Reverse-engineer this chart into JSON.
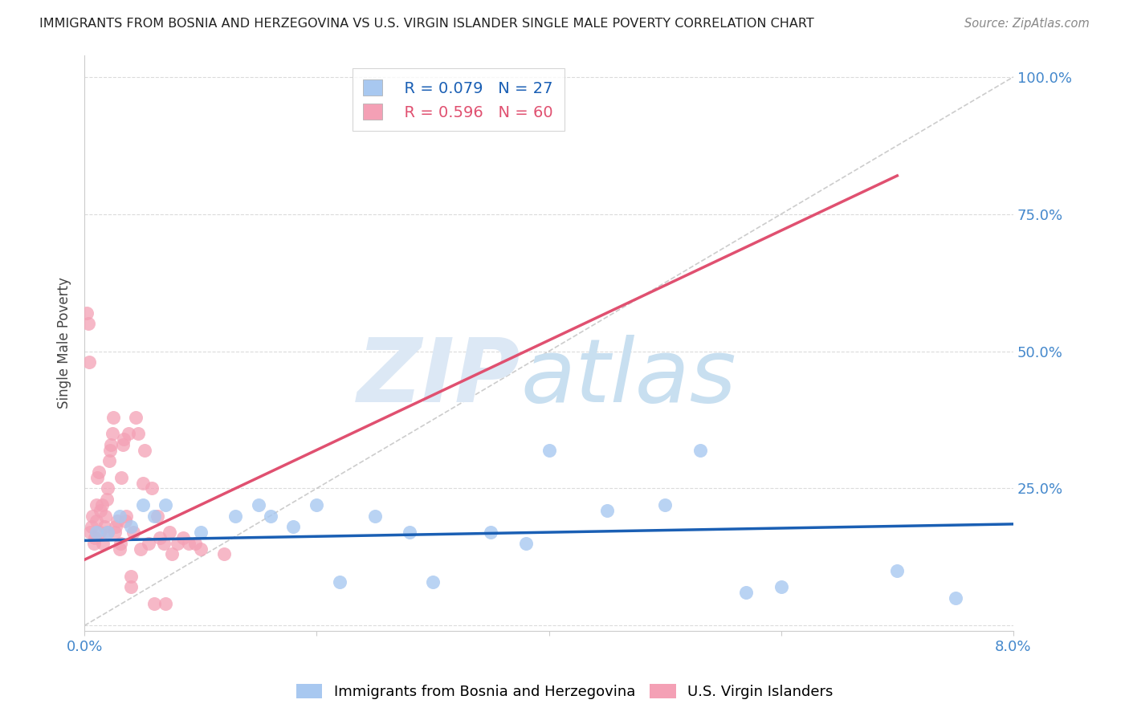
{
  "title": "IMMIGRANTS FROM BOSNIA AND HERZEGOVINA VS U.S. VIRGIN ISLANDER SINGLE MALE POVERTY CORRELATION CHART",
  "source": "Source: ZipAtlas.com",
  "ylabel": "Single Male Poverty",
  "xlim": [
    0.0,
    0.08
  ],
  "ylim": [
    0.0,
    1.0
  ],
  "xticks": [
    0.0,
    0.02,
    0.04,
    0.06,
    0.08
  ],
  "xticklabels": [
    "0.0%",
    "",
    "",
    "",
    "8.0%"
  ],
  "yticks": [
    0.0,
    0.25,
    0.5,
    0.75,
    1.0
  ],
  "yticklabels": [
    "",
    "25.0%",
    "50.0%",
    "75.0%",
    "100.0%"
  ],
  "r_blue": 0.079,
  "n_blue": 27,
  "r_pink": 0.596,
  "n_pink": 60,
  "blue_color": "#a8c8f0",
  "pink_color": "#f4a0b5",
  "blue_line_color": "#1a5fb4",
  "pink_line_color": "#e05070",
  "blue_line": {
    "x0": 0.0,
    "y0": 0.155,
    "x1": 0.08,
    "y1": 0.185
  },
  "pink_line": {
    "x0": 0.0,
    "y0": 0.12,
    "x1": 0.07,
    "y1": 0.82
  },
  "blue_scatter": [
    [
      0.001,
      0.17
    ],
    [
      0.002,
      0.17
    ],
    [
      0.003,
      0.2
    ],
    [
      0.004,
      0.18
    ],
    [
      0.005,
      0.22
    ],
    [
      0.006,
      0.2
    ],
    [
      0.007,
      0.22
    ],
    [
      0.01,
      0.17
    ],
    [
      0.013,
      0.2
    ],
    [
      0.015,
      0.22
    ],
    [
      0.016,
      0.2
    ],
    [
      0.018,
      0.18
    ],
    [
      0.02,
      0.22
    ],
    [
      0.022,
      0.08
    ],
    [
      0.025,
      0.2
    ],
    [
      0.028,
      0.17
    ],
    [
      0.03,
      0.08
    ],
    [
      0.035,
      0.17
    ],
    [
      0.038,
      0.15
    ],
    [
      0.04,
      0.32
    ],
    [
      0.045,
      0.21
    ],
    [
      0.05,
      0.22
    ],
    [
      0.053,
      0.32
    ],
    [
      0.057,
      0.06
    ],
    [
      0.06,
      0.07
    ],
    [
      0.07,
      0.1
    ],
    [
      0.075,
      0.05
    ]
  ],
  "pink_scatter": [
    [
      0.0002,
      0.57
    ],
    [
      0.0003,
      0.55
    ],
    [
      0.0004,
      0.48
    ],
    [
      0.0005,
      0.17
    ],
    [
      0.0006,
      0.18
    ],
    [
      0.0007,
      0.2
    ],
    [
      0.0008,
      0.15
    ],
    [
      0.0009,
      0.16
    ],
    [
      0.001,
      0.19
    ],
    [
      0.001,
      0.22
    ],
    [
      0.0011,
      0.27
    ],
    [
      0.0012,
      0.28
    ],
    [
      0.0013,
      0.17
    ],
    [
      0.0014,
      0.21
    ],
    [
      0.0015,
      0.22
    ],
    [
      0.0016,
      0.15
    ],
    [
      0.0017,
      0.18
    ],
    [
      0.0018,
      0.2
    ],
    [
      0.0019,
      0.23
    ],
    [
      0.002,
      0.25
    ],
    [
      0.002,
      0.17
    ],
    [
      0.0021,
      0.3
    ],
    [
      0.0022,
      0.32
    ],
    [
      0.0023,
      0.33
    ],
    [
      0.0024,
      0.35
    ],
    [
      0.0025,
      0.38
    ],
    [
      0.0026,
      0.17
    ],
    [
      0.0027,
      0.18
    ],
    [
      0.0028,
      0.19
    ],
    [
      0.003,
      0.14
    ],
    [
      0.0031,
      0.15
    ],
    [
      0.0032,
      0.27
    ],
    [
      0.0033,
      0.33
    ],
    [
      0.0034,
      0.34
    ],
    [
      0.0035,
      0.19
    ],
    [
      0.0036,
      0.2
    ],
    [
      0.0038,
      0.35
    ],
    [
      0.004,
      0.07
    ],
    [
      0.004,
      0.09
    ],
    [
      0.0042,
      0.17
    ],
    [
      0.0044,
      0.38
    ],
    [
      0.0046,
      0.35
    ],
    [
      0.0048,
      0.14
    ],
    [
      0.005,
      0.26
    ],
    [
      0.0052,
      0.32
    ],
    [
      0.0055,
      0.15
    ],
    [
      0.0058,
      0.25
    ],
    [
      0.006,
      0.04
    ],
    [
      0.0063,
      0.2
    ],
    [
      0.0065,
      0.16
    ],
    [
      0.0068,
      0.15
    ],
    [
      0.007,
      0.04
    ],
    [
      0.0073,
      0.17
    ],
    [
      0.0075,
      0.13
    ],
    [
      0.008,
      0.15
    ],
    [
      0.0085,
      0.16
    ],
    [
      0.009,
      0.15
    ],
    [
      0.0095,
      0.15
    ],
    [
      0.01,
      0.14
    ],
    [
      0.012,
      0.13
    ]
  ],
  "watermark_zip": "ZIP",
  "watermark_atlas": "atlas",
  "watermark_color": "#dce8f5",
  "background_color": "#ffffff",
  "grid_color": "#d8d8d8"
}
